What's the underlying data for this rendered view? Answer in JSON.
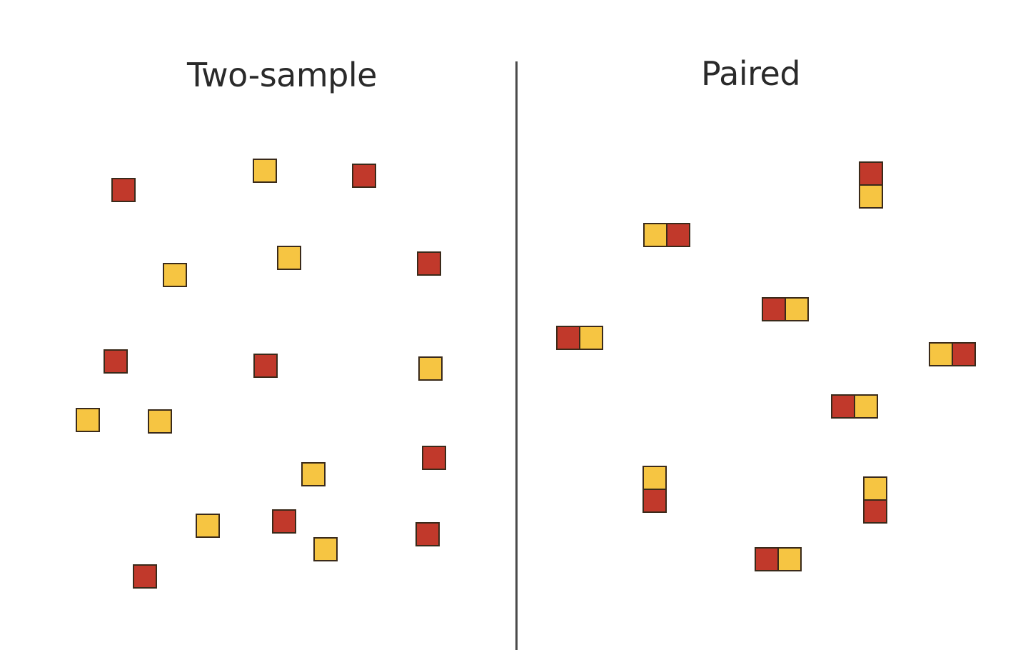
{
  "panels": {
    "left_title": "Two-sample",
    "right_title": "Paired"
  },
  "colors": {
    "red": "#c1392b",
    "yellow": "#f6c542",
    "outline": "#3a2a1a",
    "divider": "#4a4a4a"
  }
}
